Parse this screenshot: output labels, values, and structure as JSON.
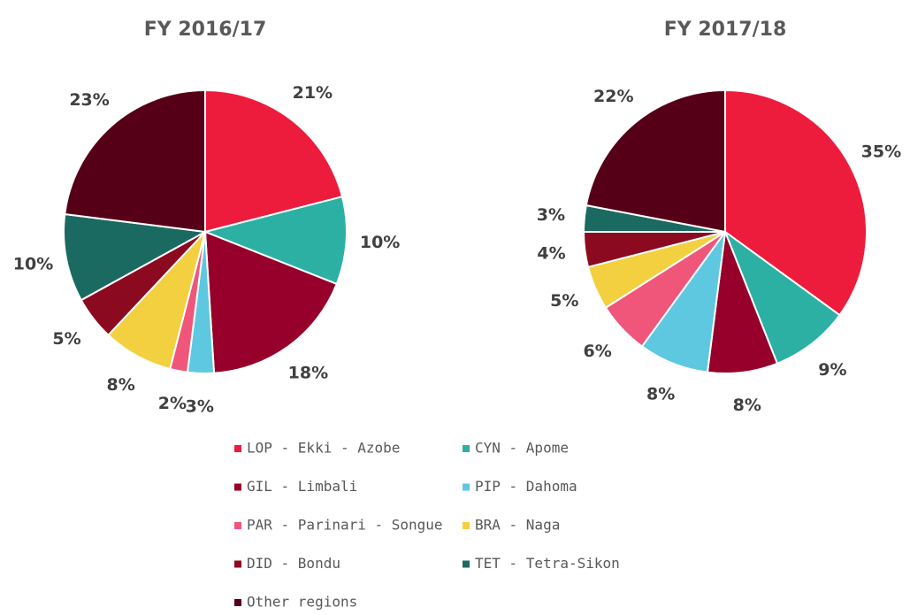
{
  "chart_data": [
    {
      "type": "pie",
      "title": "FY 2016/17",
      "categories": [
        "LOP - Ekki - Azobe",
        "CYN - Apome",
        "GIL - Limbali",
        "PIP - Dahoma",
        "PAR - Parinari - Songue",
        "BRA - Naga",
        "DID - Bondu",
        "TET - Tetra-Sikon",
        "Other regions"
      ],
      "values": [
        21,
        10,
        18,
        3,
        2,
        8,
        5,
        10,
        23
      ],
      "value_labels": [
        "21%",
        "10%",
        "18%",
        "3%",
        "2%",
        "8%",
        "5%",
        "10%",
        "23%"
      ],
      "colors": [
        "#ee1c3c",
        "#2cb0a4",
        "#96002a",
        "#5ec8e0",
        "#f0567a",
        "#f2d040",
        "#8c0a20",
        "#1b6a62",
        "#560018"
      ]
    },
    {
      "type": "pie",
      "title": "FY 2017/18",
      "categories": [
        "LOP - Ekki - Azobe",
        "CYN - Apome",
        "GIL - Limbali",
        "PIP - Dahoma",
        "PAR - Parinari - Songue",
        "BRA - Naga",
        "DID - Bondu",
        "TET - Tetra-Sikon",
        "Other regions"
      ],
      "values": [
        35,
        9,
        8,
        8,
        6,
        5,
        4,
        3,
        22
      ],
      "value_labels": [
        "35%",
        "9%",
        "8%",
        "8%",
        "6%",
        "5%",
        "4%",
        "3%",
        "22%"
      ],
      "colors": [
        "#ee1c3c",
        "#2cb0a4",
        "#96002a",
        "#5ec8e0",
        "#f0567a",
        "#f2d040",
        "#8c0a20",
        "#1b6a62",
        "#560018"
      ]
    }
  ]
}
